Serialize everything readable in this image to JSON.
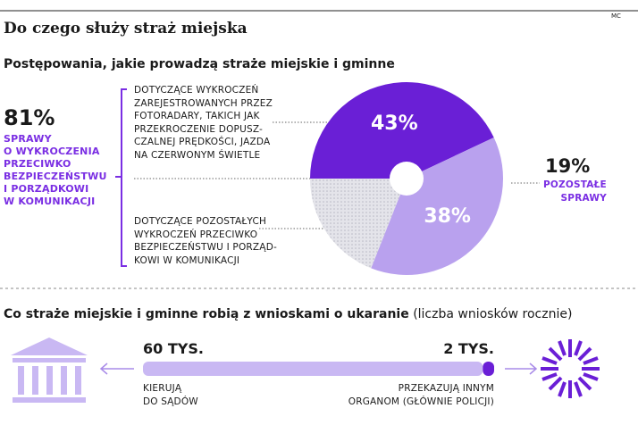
{
  "header": {
    "title": "Do czego służy straż miejska",
    "credit": "MC"
  },
  "chart_data": [
    {
      "type": "pie",
      "title": "Postępowania, jakie prowadzą straże miejskie i gminne",
      "categories": [
        "DOTYCZĄCE WYKROCZEŃ\nZAREJESTROWANYCH PRZEZ\nFOTORADARY, TAKICH JAK\nPRZEKROCZENIE DOPUSZ-\nCZALNEJ PRĘDKOŚCI, JAZDA\nNA CZERWONYM ŚWIETLE",
        "DOTYCZĄCE POZOSTAŁYCH\nWYKROCZEŃ PRZECIWKO\nBEZPIECZEŃSTWU I PORZĄD-\nKOWI W KOMUNIKACJI",
        "POZOSTAŁE\nSPRAWY"
      ],
      "values": [
        43,
        38,
        19
      ],
      "value_labels": [
        "43%",
        "38%",
        "19%"
      ],
      "colors": [
        "#6a1fd6",
        "#b9a1ee",
        "#e4e4ea"
      ],
      "group": {
        "value": 81,
        "label": "81%",
        "text": "SPRAWY\nO WYKROCZENIA\nPRZECIWKO\nBEZPIECZEŃSTWU\nI PORZĄDKOWI\nW KOMUNIKACJI"
      }
    },
    {
      "type": "bar",
      "title": "Co straże miejskie i gminne robią z wnioskami o ukaranie",
      "subtitle": "(liczba wniosków rocznie)",
      "series": [
        {
          "name": "KIERUJĄ\nDO SĄDÓW",
          "color": "#c9b8f3",
          "values": [
            60
          ],
          "value_labels": [
            "60 TYS."
          ]
        },
        {
          "name": "PRZEKAZUJĄ INNYM\nORGANOM (GŁÓWNIE POLICJI)",
          "color": "#6a1fd6",
          "values": [
            2
          ],
          "value_labels": [
            "2 TYS."
          ]
        }
      ]
    }
  ]
}
